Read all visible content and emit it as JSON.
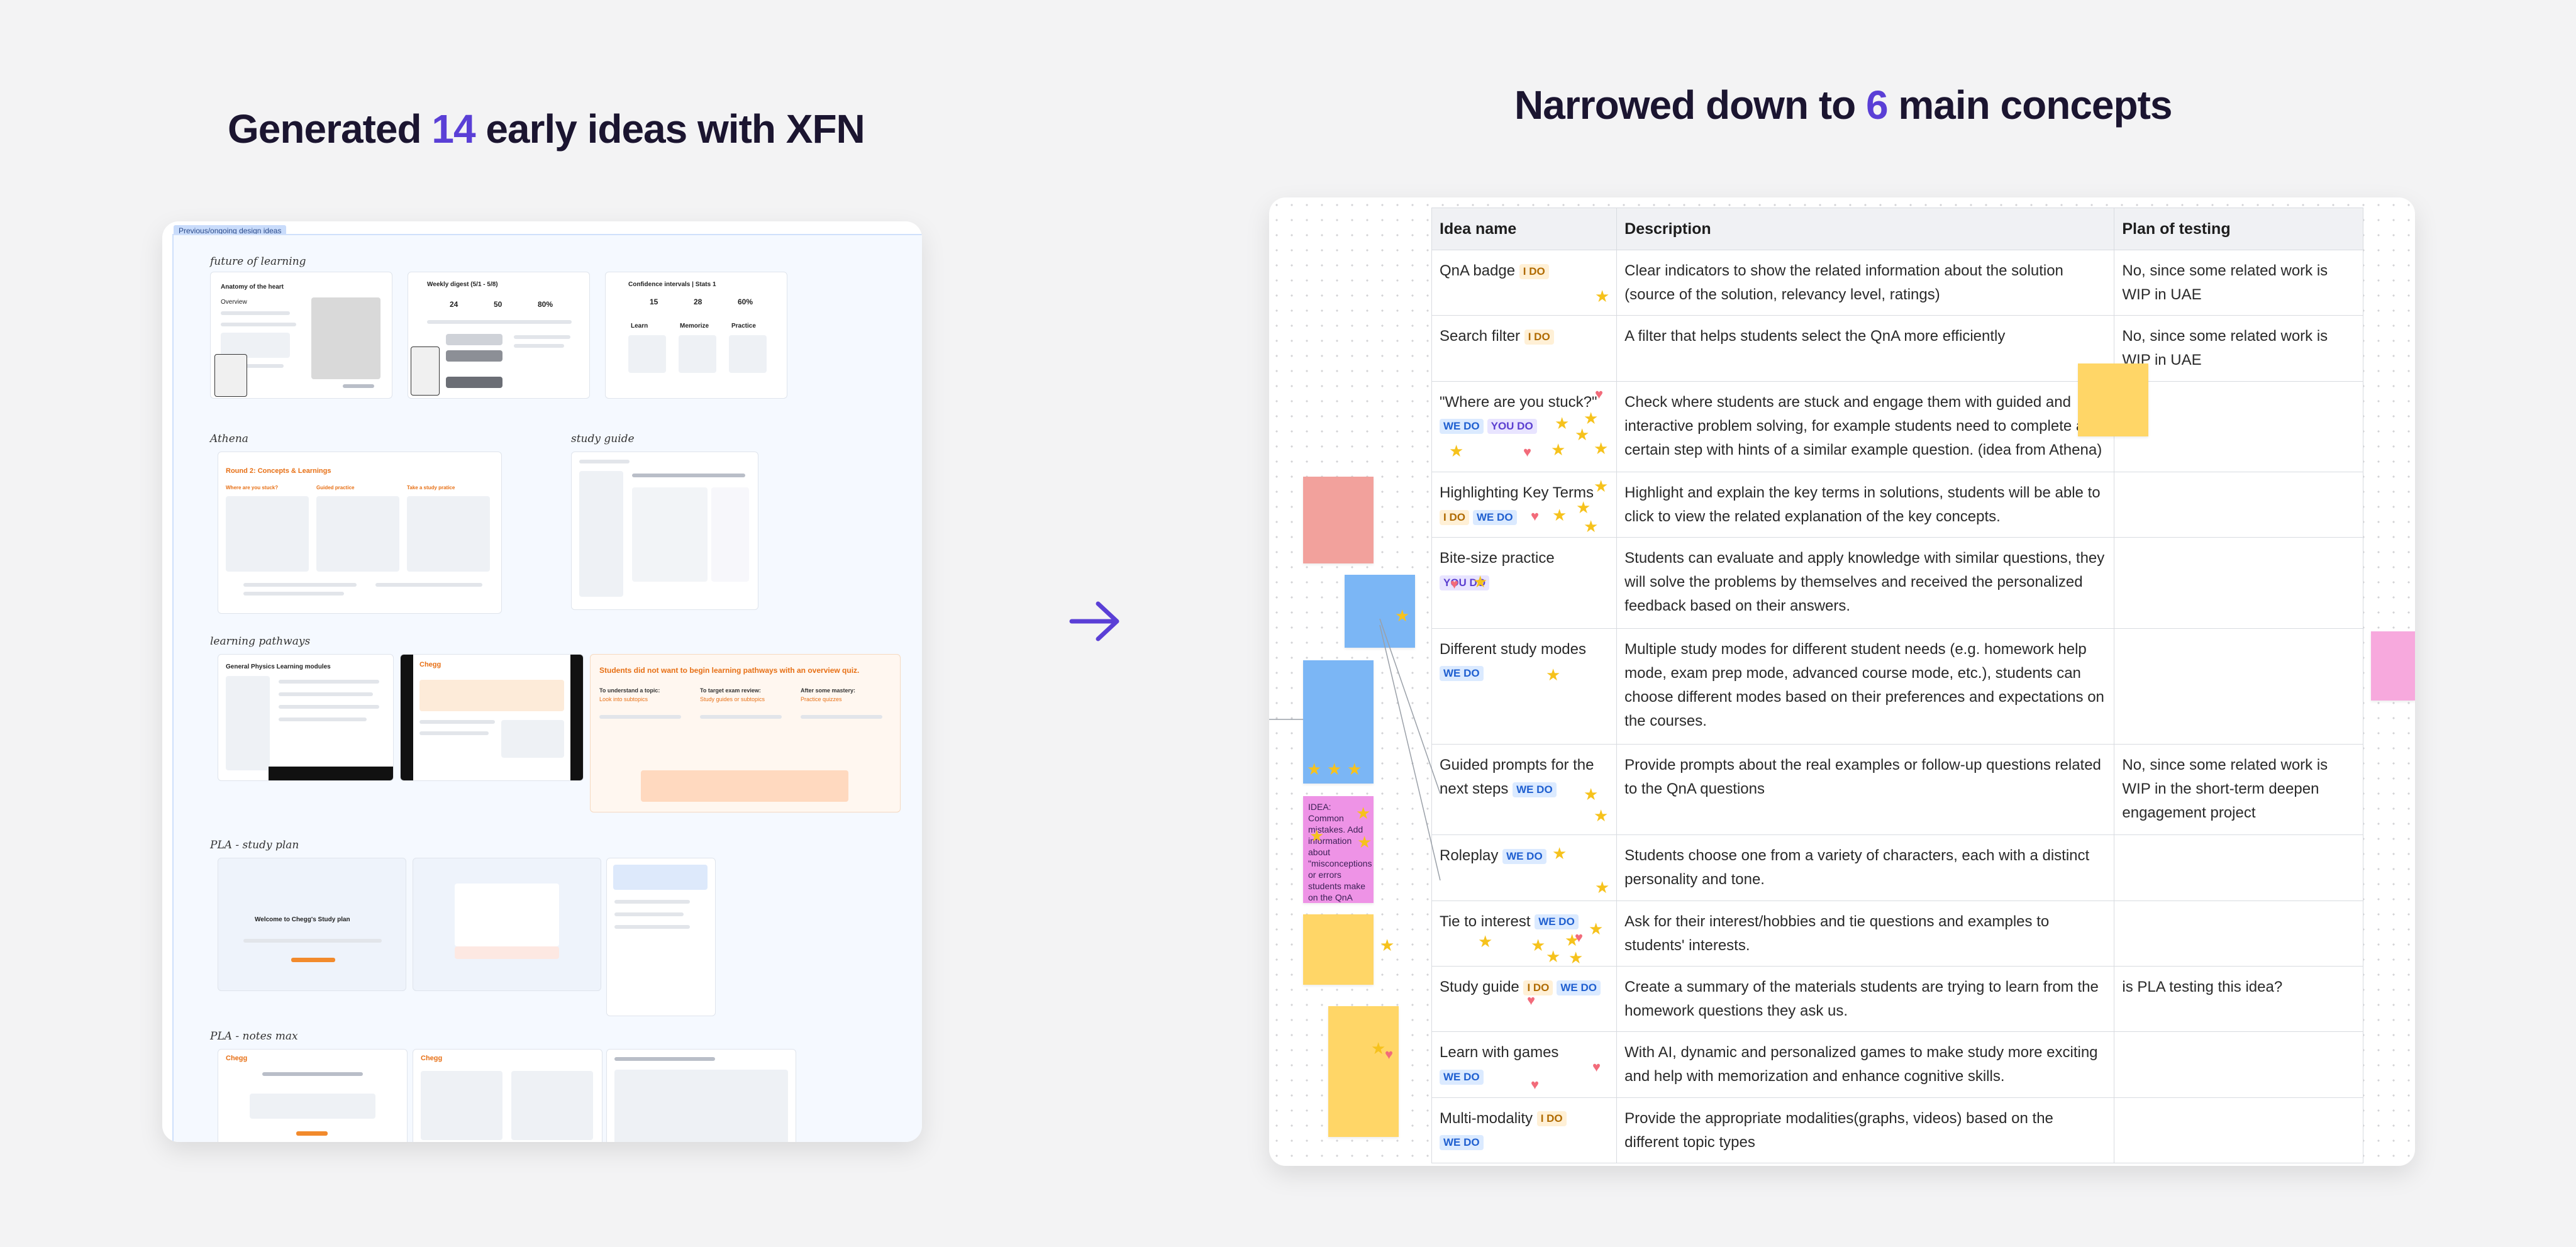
{
  "headings": {
    "left": {
      "prefix": "Generated ",
      "number": "14",
      "suffix": " early ideas with XFN"
    },
    "right": {
      "prefix": "Narrowed down to ",
      "number": "6",
      "suffix": " main concepts"
    }
  },
  "colors": {
    "accent": "#5a3fd6",
    "ink": "#1b1530",
    "orange": "#f28a2c",
    "sticky_yellow": "#ffd667",
    "sticky_blue": "#7bb6f5"
  },
  "left_board": {
    "tag": "Previous/ongoing design ideas",
    "sections": {
      "future": "future of learning",
      "athena": "Athena",
      "study_guide": "study guide",
      "pathways": "learning pathways",
      "pla_study": "PLA - study plan",
      "pla_notes": "PLA - notes max"
    },
    "cards": {
      "anatomy_title": "Anatomy of the heart",
      "anatomy_overview": "Overview",
      "weekly_digest": "Weekly digest (5/1 - 5/8)",
      "weekly_stats": [
        "24",
        "50",
        "80%"
      ],
      "confidence": "Confidence intervals | Stats 1",
      "confidence_stats": [
        "15",
        "28",
        "60%"
      ],
      "confidence_cols": [
        "Learn",
        "Memorize",
        "Practice"
      ],
      "round2": "Round 2: Concepts & Learnings",
      "round2_cols": [
        "Where are you stuck?",
        "Guided practice",
        "Take a study pratice"
      ],
      "pathways_quote": "Students did not want to begin learning pathways with an overview quiz.",
      "pathways_cols": [
        "To understand a topic:",
        "To target exam review:",
        "After some mastery:"
      ],
      "pathways_sub": [
        "Look into subtopics",
        "Study guides or subtopics",
        "Practice quizzes"
      ],
      "physics": "General Physics Learning modules",
      "chegg": "Chegg",
      "study_plan_welcome": "Welcome to Chegg's Study plan"
    }
  },
  "table": {
    "headers": [
      "Idea name",
      "Description",
      "Plan of testing"
    ],
    "rows": [
      {
        "name": "QnA badge",
        "tags": [
          {
            "k": "ido",
            "t": "I DO"
          }
        ],
        "desc": "Clear indicators to show the related information about the solution (source of the solution, relevancy level, ratings)",
        "plan": "No, since some related work is WIP in UAE"
      },
      {
        "name": "Search filter",
        "tags": [
          {
            "k": "ido",
            "t": "I DO"
          }
        ],
        "desc": "A filter that helps students select the QnA more efficiently",
        "plan": "No, since some related work is WIP in UAE"
      },
      {
        "name": "\"Where are you stuck?\"",
        "tags": [
          {
            "k": "wedo",
            "t": "WE DO"
          },
          {
            "k": "youdo",
            "t": "YOU DO"
          }
        ],
        "desc": "Check where students are stuck and engage them with guided and interactive problem solving, for example students need to complete a certain step with hints of a similar example question. (idea from Athena)",
        "plan": ""
      },
      {
        "name": "Highlighting Key Terms",
        "tags": [
          {
            "k": "ido",
            "t": "I DO"
          },
          {
            "k": "wedo",
            "t": "WE DO"
          }
        ],
        "desc": "Highlight and explain the key terms in solutions, students will be able to click to view the related explanation of the key concepts.",
        "plan": ""
      },
      {
        "name": "Bite-size practice",
        "tags": [
          {
            "k": "youdo",
            "t": "YOU DO"
          }
        ],
        "desc": "Students can evaluate and apply knowledge with similar questions, they will solve the problems by themselves and received the personalized feedback based on their answers.",
        "plan": ""
      },
      {
        "name": "Different study modes",
        "tags": [
          {
            "k": "wedo",
            "t": "WE DO"
          }
        ],
        "desc": "Multiple study modes for different student needs (e.g. homework help mode, exam prep mode, advanced course mode, etc.), students can choose different modes based on their preferences and expectations on the courses.",
        "plan": ""
      },
      {
        "name": "Guided prompts for the next steps",
        "tags": [
          {
            "k": "wedo",
            "t": "WE DO"
          }
        ],
        "desc": "Provide prompts about the real examples or follow-up questions related to the QnA questions",
        "plan": "No, since some related work is WIP in the short-term deepen engagement project"
      },
      {
        "name": "Roleplay",
        "tags": [
          {
            "k": "wedo",
            "t": "WE DO"
          }
        ],
        "desc": "Students choose one from a variety of characters, each with a distinct personality and tone.",
        "plan": ""
      },
      {
        "name": "Tie to interest",
        "tags": [
          {
            "k": "wedo",
            "t": "WE DO"
          }
        ],
        "desc": "Ask for their interest/hobbies and tie questions and examples to students' interests.",
        "plan": ""
      },
      {
        "name": "Study guide",
        "tags": [
          {
            "k": "ido",
            "t": "I DO"
          },
          {
            "k": "wedo",
            "t": "WE DO"
          }
        ],
        "desc": "Create a summary of the materials students are trying to learn from the homework questions they ask us.",
        "plan": "is PLA testing this idea?"
      },
      {
        "name": "Learn with games",
        "tags": [
          {
            "k": "wedo",
            "t": "WE DO"
          }
        ],
        "desc": "With AI, dynamic and personalized games to make study more exciting and help with memorization and enhance cognitive skills.",
        "plan": ""
      },
      {
        "name": "Multi-modality",
        "tags": [
          {
            "k": "ido",
            "t": "I DO"
          },
          {
            "k": "wedo",
            "t": "WE DO"
          }
        ],
        "desc": "Provide the appropriate modalities(graphs, videos) based on the different topic types",
        "plan": ""
      }
    ]
  },
  "stickies": {
    "magenta_idea": "IDEA: Common mistakes. Add information about \"misconceptions or errors students make on the QnA section. (I do)"
  }
}
